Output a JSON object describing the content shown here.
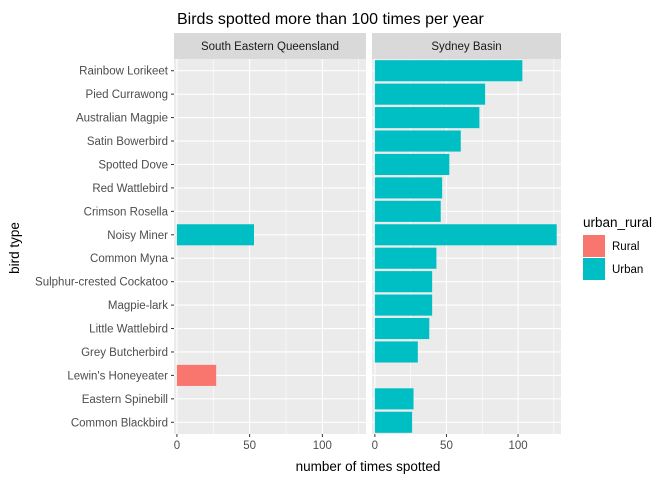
{
  "chart_data": {
    "type": "bar",
    "orientation": "horizontal",
    "title": "Birds spotted more than 100 times per year",
    "xlabel": "number of times spotted",
    "ylabel": "bird type",
    "xlim": [
      -2,
      130
    ],
    "xticks": [
      0,
      50,
      100
    ],
    "grid": true,
    "legend_position": "right",
    "legend": {
      "title": "urban_rural",
      "entries": [
        {
          "label": "Rural",
          "color": "#F8766D"
        },
        {
          "label": "Urban",
          "color": "#00BFC4"
        }
      ]
    },
    "categories": [
      "Rainbow Lorikeet",
      "Pied Currawong",
      "Australian Magpie",
      "Satin Bowerbird",
      "Spotted Dove",
      "Red Wattlebird",
      "Crimson Rosella",
      "Noisy Miner",
      "Common Myna",
      "Sulphur-crested Cockatoo",
      "Magpie-lark",
      "Little Wattlebird",
      "Grey Butcherbird",
      "Lewin's Honeyeater",
      "Eastern Spinebill",
      "Common Blackbird"
    ],
    "panels": [
      {
        "name": "South Eastern Queensland",
        "bars": [
          {
            "category": "Noisy Miner",
            "value": 53,
            "group": "Urban"
          },
          {
            "category": "Lewin's Honeyeater",
            "value": 27,
            "group": "Rural"
          }
        ]
      },
      {
        "name": "Sydney Basin",
        "bars": [
          {
            "category": "Rainbow Lorikeet",
            "value": 103,
            "group": "Urban"
          },
          {
            "category": "Pied Currawong",
            "value": 77,
            "group": "Urban"
          },
          {
            "category": "Australian Magpie",
            "value": 73,
            "group": "Urban"
          },
          {
            "category": "Satin Bowerbird",
            "value": 60,
            "group": "Urban"
          },
          {
            "category": "Spotted Dove",
            "value": 52,
            "group": "Urban"
          },
          {
            "category": "Red Wattlebird",
            "value": 47,
            "group": "Urban"
          },
          {
            "category": "Crimson Rosella",
            "value": 46,
            "group": "Urban"
          },
          {
            "category": "Noisy Miner",
            "value": 127,
            "group": "Urban"
          },
          {
            "category": "Common Myna",
            "value": 43,
            "group": "Urban"
          },
          {
            "category": "Sulphur-crested Cockatoo",
            "value": 40,
            "group": "Urban"
          },
          {
            "category": "Magpie-lark",
            "value": 40,
            "group": "Urban"
          },
          {
            "category": "Little Wattlebird",
            "value": 38,
            "group": "Urban"
          },
          {
            "category": "Grey Butcherbird",
            "value": 30,
            "group": "Urban"
          },
          {
            "category": "Eastern Spinebill",
            "value": 27,
            "group": "Urban"
          },
          {
            "category": "Common Blackbird",
            "value": 26,
            "group": "Urban"
          }
        ]
      }
    ]
  }
}
